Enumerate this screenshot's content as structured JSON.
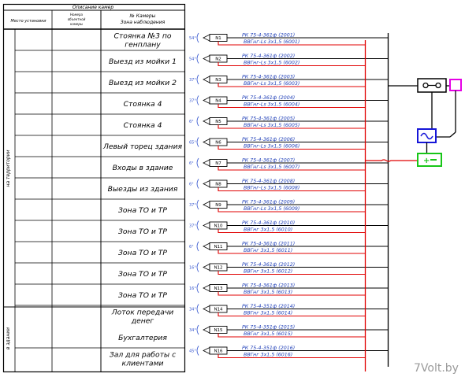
{
  "header": {
    "title": "Описание камер",
    "col_place": "Место установки",
    "col_num_line1": "Номера",
    "col_num_line2": "объектной",
    "col_num_line3": "камеры",
    "col_cam_line1": "№ Камеры",
    "col_cam_line2": "Зона наблюдения"
  },
  "groups": [
    {
      "label": "на территории"
    },
    {
      "label": "в здании"
    }
  ],
  "cameras": [
    {
      "zone": [
        "Стоянка №3 по",
        "генплану"
      ],
      "id": "N1",
      "angle": "54°",
      "coax": "РК 75-4-361ф (2001)",
      "power": "ВВГнг-Ls 3х1,5 (6001)"
    },
    {
      "zone": [
        "Выезд из мойки 1"
      ],
      "id": "N2",
      "angle": "54°",
      "coax": "РК 75-4-361ф (2002)",
      "power": "ВВГнг-Ls 3х1,5 (6002)"
    },
    {
      "zone": [
        "Выезд из мойки 2"
      ],
      "id": "N3",
      "angle": "37°",
      "coax": "РК 75-4-361ф (2003)",
      "power": "ВВГнг-Ls 3х1,5 (6003)"
    },
    {
      "zone": [
        "Стоянка 4"
      ],
      "id": "N4",
      "angle": "37°",
      "coax": "РК 75-4-361ф (2004)",
      "power": "ВВГнг-Ls 3х1,5 (6004)"
    },
    {
      "zone": [
        "Стоянка 4"
      ],
      "id": "N5",
      "angle": "6°",
      "coax": "РК 75-4-361ф (2005)",
      "power": "ВВГнг-Ls 3х1,5 (6005)"
    },
    {
      "zone": [
        "Левый торец здания"
      ],
      "id": "N6",
      "angle": "65°",
      "coax": "РК 75-4-361ф (2006)",
      "power": "ВВГнг-Ls 3х1,5 (6006)"
    },
    {
      "zone": [
        "Входы в здание"
      ],
      "id": "N7",
      "angle": "6°",
      "coax": "РК 75-4-361ф (2007)",
      "power": "ВВГнг-Ls 3х1,5 (6007)"
    },
    {
      "zone": [
        "Выезды из здания"
      ],
      "id": "N8",
      "angle": "6°",
      "coax": "РК 75-4-361ф (2008)",
      "power": "ВВГнг-Ls 3х1,5 (6008)"
    },
    {
      "zone": [
        "Зона ТО и ТР"
      ],
      "id": "N9",
      "angle": "37°",
      "coax": "РК 75-4-361ф (2009)",
      "power": "ВВГнг-Ls 3х1,5 (6009)"
    },
    {
      "zone": [
        "Зона ТО и ТР"
      ],
      "id": "N10",
      "angle": "37°",
      "coax": "РК 75-4-361ф (2010)",
      "power": "ВВГнг 3х1,5 (6010)"
    },
    {
      "zone": [
        "Зона ТО и ТР"
      ],
      "id": "N11",
      "angle": "6°",
      "coax": "РК 75-4-361ф (2011)",
      "power": "ВВГнг 3х1,5 (6011)"
    },
    {
      "zone": [
        "Зона ТО и ТР"
      ],
      "id": "N12",
      "angle": "16°",
      "coax": "РК 75-4-361ф (2012)",
      "power": "ВВГнг 3х1,5 (6012)"
    },
    {
      "zone": [
        "Зона ТО и ТР"
      ],
      "id": "N13",
      "angle": "16°",
      "coax": "РК 75-4-361ф (2013)",
      "power": "ВВГнг 3х1,5 (6013)"
    },
    {
      "zone": [
        "Лоток передачи",
        "денег"
      ],
      "id": "N14",
      "angle": "34°",
      "coax": "РК 75-4-351ф (2014)",
      "power": "ВВГнг 3х1,5 (6014)"
    },
    {
      "zone": [
        "Бухгалтерия"
      ],
      "id": "N15",
      "angle": "34°",
      "coax": "РК 75-4-351ф (2015)",
      "power": "ВВГнг 3х1,5 (6015)"
    },
    {
      "zone": [
        "Зал для работы с",
        "клиентами"
      ],
      "id": "N16",
      "angle": "45°",
      "coax": "РК 75-4-351ф (2016)",
      "power": "ВВГнг 3х1,5 (6016)"
    }
  ],
  "watermark": "7Volt.by",
  "colors": {
    "coax_line": "#000000",
    "power_line": "#e00000",
    "cable_text": "#1f3fb8",
    "power_box": "#1616d8",
    "ups_box": "#17c617",
    "terminal_box": "#e600e6"
  }
}
